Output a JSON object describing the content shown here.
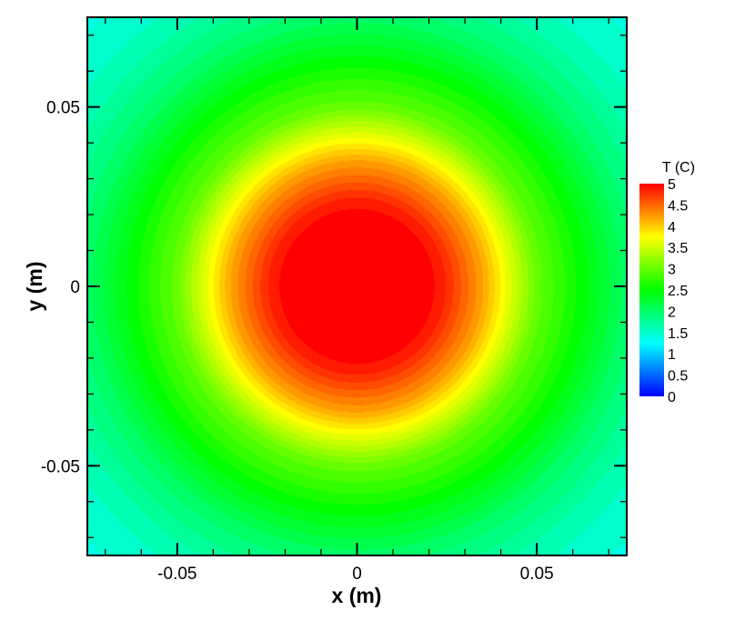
{
  "chart_data": {
    "type": "heatmap",
    "xlabel": "x (m)",
    "ylabel": "y (m)",
    "xlim": [
      -0.075,
      0.075
    ],
    "ylim": [
      -0.075,
      0.075
    ],
    "x_ticks": [
      {
        "value": -0.05,
        "label": "-0.05"
      },
      {
        "value": 0,
        "label": "0"
      },
      {
        "value": 0.05,
        "label": "0.05"
      }
    ],
    "y_ticks": [
      {
        "value": 0.05,
        "label": "0.05"
      },
      {
        "value": 0,
        "label": "0"
      },
      {
        "value": -0.05,
        "label": "-0.05"
      }
    ],
    "colorbar": {
      "title": "T (C)",
      "range": [
        0,
        5
      ],
      "ticks": [
        "5",
        "4.5",
        "4",
        "3.5",
        "3",
        "2.5",
        "2",
        "1.5",
        "1",
        "0.5",
        "0"
      ],
      "colormap": [
        "#0000ff",
        "#00ffff",
        "#00ff00",
        "#ffff00",
        "#ff0000"
      ]
    },
    "field": {
      "description_of_values": "Temperature field: peak of about 5 C inside radius about 0.025 m around the origin, decreasing radially to about 2.5 C near radius 0.055 m and about 1.4 C in the corners.",
      "radial_profile": [
        {
          "r": 0.0,
          "T": 5.0
        },
        {
          "r": 0.02,
          "T": 5.0
        },
        {
          "r": 0.025,
          "T": 4.8
        },
        {
          "r": 0.035,
          "T": 4.2
        },
        {
          "r": 0.04,
          "T": 3.8
        },
        {
          "r": 0.05,
          "T": 3.0
        },
        {
          "r": 0.06,
          "T": 2.6
        },
        {
          "r": 0.075,
          "T": 2.0
        },
        {
          "r": 0.09,
          "T": 1.6
        },
        {
          "r": 0.106,
          "T": 1.4
        }
      ]
    }
  }
}
